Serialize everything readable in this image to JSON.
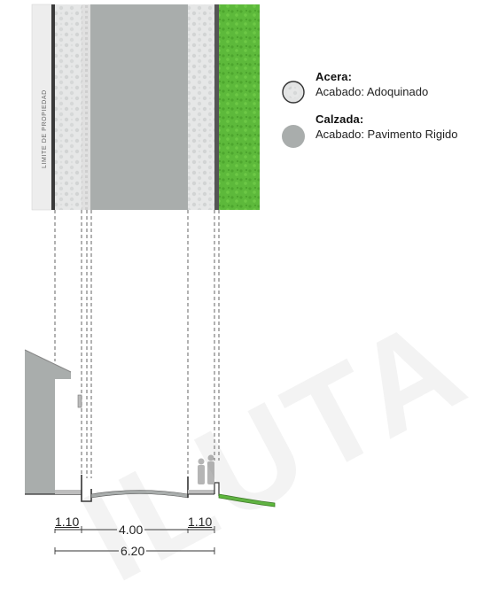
{
  "plan": {
    "boundary_label": "LIMITE DE PROPIEDAD"
  },
  "legend": {
    "items": [
      {
        "title": "Acera:",
        "text": "Acabado: Adoquinado"
      },
      {
        "title": "Calzada:",
        "text": "Acabado: Pavimento Rigido"
      }
    ]
  },
  "dimensions": {
    "sidewalk_left": "1.10",
    "roadway": "4.00",
    "sidewalk_right": "1.10",
    "total": "6.20"
  },
  "watermark": "ILUTA",
  "colors": {
    "sidewalk": "#e3e4e4",
    "roadway": "#a9adac",
    "grass": "#5cb83a",
    "curb": "#555555"
  }
}
